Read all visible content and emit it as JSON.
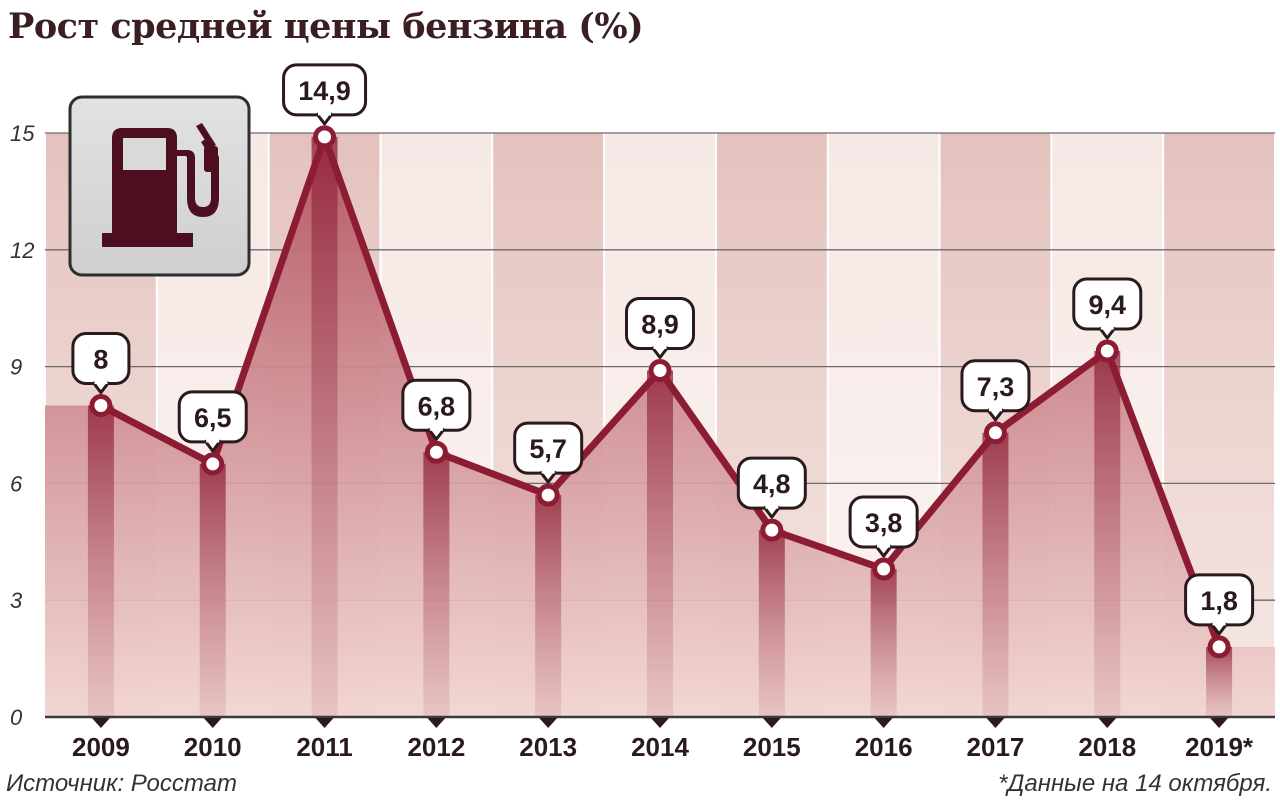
{
  "header": {
    "title": "Рост средней цены бензина (%)"
  },
  "footer": {
    "source": "Источник: Росстат",
    "note": "*Данные на 14 октября."
  },
  "icon": {
    "name": "fuel-pump-icon"
  },
  "chart_data": {
    "type": "line",
    "title": "Рост средней цены бензина (%)",
    "categories": [
      "2009",
      "2010",
      "2011",
      "2012",
      "2013",
      "2014",
      "2015",
      "2016",
      "2017",
      "2018",
      "2019*"
    ],
    "values": [
      8,
      6.5,
      14.9,
      6.8,
      5.7,
      8.9,
      4.8,
      3.8,
      7.3,
      9.4,
      1.8
    ],
    "value_labels": [
      "8",
      "6,5",
      "14,9",
      "6,8",
      "5,7",
      "8,9",
      "4,8",
      "3,8",
      "7,3",
      "9,4",
      "1,8"
    ],
    "yticks": [
      0,
      3,
      6,
      9,
      12,
      15
    ],
    "ylim": [
      0,
      15
    ],
    "xlabel": "",
    "ylabel": "",
    "grid": true,
    "colors": {
      "line": "#8c1c33",
      "area": "#b9636f",
      "column_dark": "#e3c3bf",
      "column_light": "#f5e6e2",
      "icon": "#4d0f1f"
    }
  }
}
